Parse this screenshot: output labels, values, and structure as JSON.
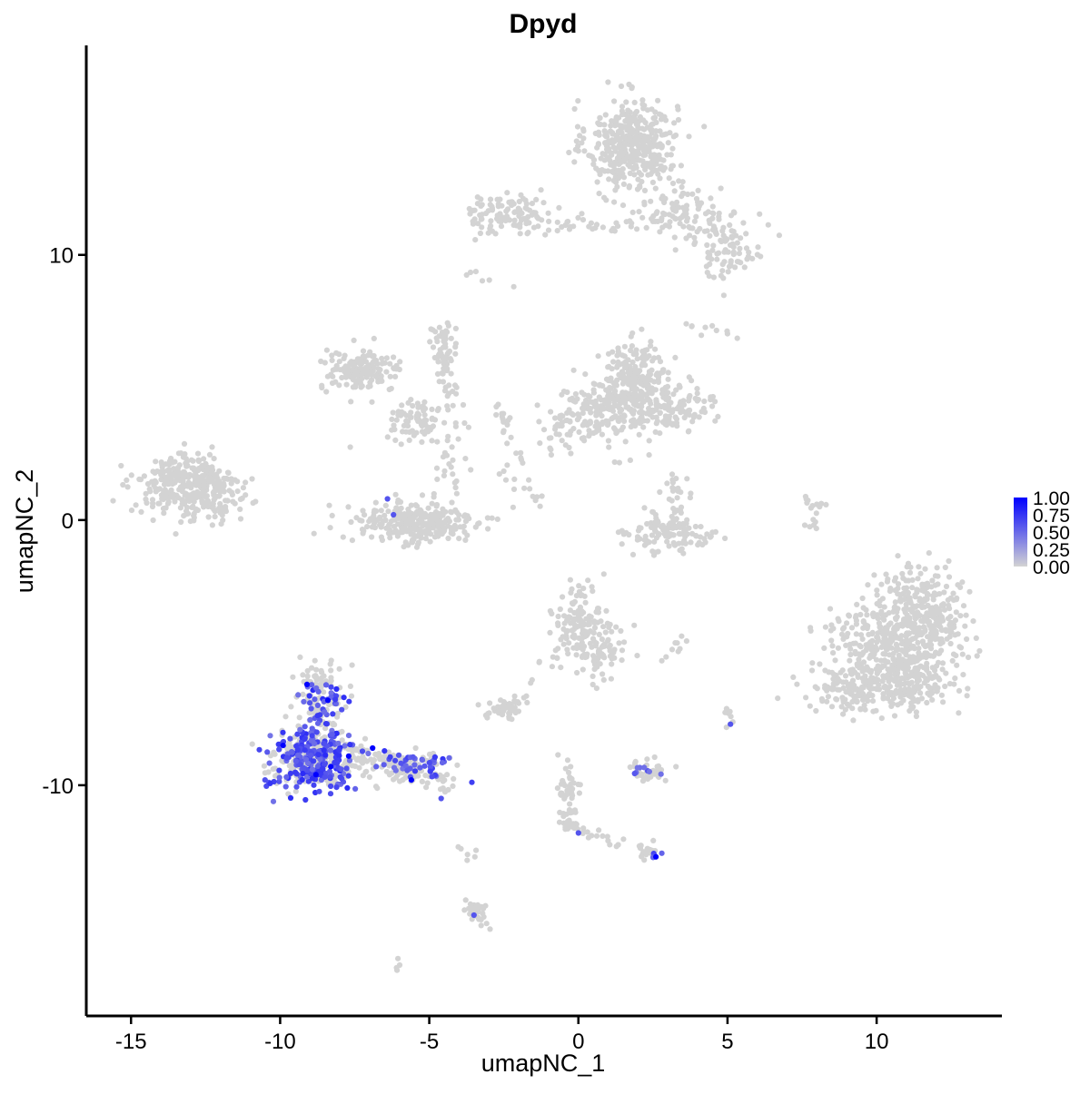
{
  "chart_data": {
    "type": "scatter",
    "title": "Dpyd",
    "xlabel": "umapNC_1",
    "ylabel": "umapNC_2",
    "xlim": [
      -16.5,
      14.2
    ],
    "ylim": [
      -18.7,
      17.9
    ],
    "x_ticks": [
      -15,
      -10,
      -5,
      0,
      5,
      10
    ],
    "y_ticks": [
      -10,
      0,
      10
    ],
    "x_tick_labels": [
      "-15",
      "-10",
      "-5",
      "0",
      "5",
      "10"
    ],
    "y_tick_labels": [
      "-10",
      "0",
      "10"
    ],
    "grid": false,
    "legend_position": "right",
    "colors": {
      "low": "#d3d3d3",
      "high": "#0000ff",
      "axis": "#000000"
    },
    "colorbar": {
      "min": 0,
      "max": 1,
      "ticks": [
        1.0,
        0.75,
        0.5,
        0.25,
        0.0
      ],
      "labels": [
        "1.00",
        "0.75",
        "0.50",
        "0.25",
        "0.00"
      ]
    },
    "clusters": [
      {
        "center": [
          1.8,
          14.2
        ],
        "spread": [
          1.0,
          1.1
        ],
        "n": 420
      },
      {
        "center": [
          3.5,
          11.6
        ],
        "spread": [
          1.3,
          0.7
        ],
        "n": 110
      },
      {
        "center": [
          5.0,
          10.2
        ],
        "spread": [
          0.8,
          0.7
        ],
        "n": 80
      },
      {
        "center": [
          -2.3,
          11.5
        ],
        "spread": [
          1.0,
          0.5
        ],
        "n": 110
      },
      {
        "center": [
          0.8,
          11.2
        ],
        "spread": [
          0.8,
          0.3
        ],
        "n": 25
      },
      {
        "center": [
          1.9,
          5.5
        ],
        "spread": [
          0.8,
          0.8
        ],
        "n": 170
      },
      {
        "center": [
          0.9,
          4.0
        ],
        "spread": [
          1.1,
          0.9
        ],
        "n": 170
      },
      {
        "center": [
          2.8,
          4.3
        ],
        "spread": [
          1.2,
          0.6
        ],
        "n": 150
      },
      {
        "center": [
          -0.5,
          3.5
        ],
        "spread": [
          0.6,
          0.7
        ],
        "n": 30
      },
      {
        "center": [
          -7.3,
          5.6
        ],
        "spread": [
          0.9,
          0.5
        ],
        "n": 150
      },
      {
        "center": [
          -5.3,
          3.8
        ],
        "spread": [
          0.8,
          0.5
        ],
        "n": 80
      },
      {
        "center": [
          -4.3,
          1.6
        ],
        "spread": [
          0.3,
          1.0
        ],
        "n": 30
      },
      {
        "center": [
          -4.5,
          6.3
        ],
        "spread": [
          0.3,
          1.0
        ],
        "n": 40
      },
      {
        "center": [
          -5.5,
          -0.1
        ],
        "spread": [
          1.4,
          0.55
        ],
        "n": 270
      },
      {
        "center": [
          -13.1,
          1.3
        ],
        "spread": [
          1.1,
          0.75
        ],
        "n": 340
      },
      {
        "center": [
          -12.0,
          0.5
        ],
        "spread": [
          0.7,
          0.6
        ],
        "n": 40
      },
      {
        "center": [
          3.2,
          -0.5
        ],
        "spread": [
          1.0,
          0.5
        ],
        "n": 120
      },
      {
        "center": [
          3.3,
          1.0
        ],
        "spread": [
          0.3,
          0.6
        ],
        "n": 25
      },
      {
        "center": [
          0.0,
          -3.9
        ],
        "spread": [
          0.6,
          0.9
        ],
        "n": 130
      },
      {
        "center": [
          0.8,
          -4.9
        ],
        "spread": [
          0.6,
          0.8
        ],
        "n": 70
      },
      {
        "center": [
          -2.4,
          -7.1
        ],
        "spread": [
          0.4,
          0.3
        ],
        "n": 50
      },
      {
        "center": [
          10.7,
          -4.5
        ],
        "spread": [
          1.4,
          1.2
        ],
        "n": 450
      },
      {
        "center": [
          10.2,
          -6.3
        ],
        "spread": [
          1.6,
          0.6
        ],
        "n": 300
      },
      {
        "center": [
          11.6,
          -3.0
        ],
        "spread": [
          0.9,
          0.9
        ],
        "n": 150
      },
      {
        "center": [
          -8.8,
          -8.9
        ],
        "spread": [
          1.0,
          0.7
        ],
        "n": 220
      },
      {
        "center": [
          -8.6,
          -6.6
        ],
        "spread": [
          0.6,
          0.9
        ],
        "n": 90
      },
      {
        "center": [
          -5.6,
          -9.3
        ],
        "spread": [
          1.0,
          0.4
        ],
        "n": 80
      },
      {
        "center": [
          2.4,
          -9.5
        ],
        "spread": [
          0.5,
          0.25
        ],
        "n": 40
      },
      {
        "center": [
          -0.4,
          -10.3
        ],
        "spread": [
          0.3,
          0.7
        ],
        "n": 30
      },
      {
        "center": [
          -0.2,
          -11.5
        ],
        "spread": [
          0.3,
          0.2
        ],
        "n": 12
      },
      {
        "center": [
          2.3,
          -12.5
        ],
        "spread": [
          0.25,
          0.2
        ],
        "n": 20
      },
      {
        "center": [
          -3.4,
          -14.8
        ],
        "spread": [
          0.25,
          0.4
        ],
        "n": 30
      }
    ],
    "streams": [
      {
        "from": [
          -5.0,
          7.6
        ],
        "to": [
          -4.2,
          4.3
        ],
        "n": 30
      },
      {
        "from": [
          -2.7,
          4.5
        ],
        "to": [
          -2.0,
          2.2
        ],
        "n": 20
      },
      {
        "from": [
          -2.5,
          1.8
        ],
        "to": [
          -1.2,
          0.6
        ],
        "n": 14
      },
      {
        "from": [
          7.6,
          0.8
        ],
        "to": [
          8.1,
          0.2
        ],
        "n": 6
      },
      {
        "from": [
          8.3,
          0.9
        ],
        "to": [
          7.8,
          -0.3
        ],
        "n": 12
      },
      {
        "from": [
          -3.7,
          9.4
        ],
        "to": [
          -2.4,
          8.8
        ],
        "n": 6
      },
      {
        "from": [
          -7.6,
          -8.6
        ],
        "to": [
          -4.2,
          -10.3
        ],
        "n": 45
      },
      {
        "from": [
          -0.6,
          -9.3
        ],
        "to": [
          -0.2,
          -11.8
        ],
        "n": 25
      },
      {
        "from": [
          0.2,
          -11.8
        ],
        "to": [
          1.6,
          -12.2
        ],
        "n": 14
      },
      {
        "from": [
          -1.7,
          -6.2
        ],
        "to": [
          -0.9,
          -5.0
        ],
        "n": 8
      },
      {
        "from": [
          2.9,
          -5.2
        ],
        "to": [
          3.5,
          -4.5
        ],
        "n": 9
      },
      {
        "from": [
          4.9,
          -7.1
        ],
        "to": [
          5.1,
          -7.7
        ],
        "n": 8
      },
      {
        "from": [
          -4.0,
          -12.0
        ],
        "to": [
          -3.6,
          -12.8
        ],
        "n": 6
      },
      {
        "from": [
          -6.1,
          -17.0
        ],
        "to": [
          -5.9,
          -16.8
        ],
        "n": 4
      },
      {
        "from": [
          3.4,
          7.3
        ],
        "to": [
          6.8,
          6.8
        ],
        "n": 10
      }
    ],
    "expressing_regions": [
      {
        "center": [
          -8.9,
          -9.0
        ],
        "spread": [
          0.9,
          0.8
        ],
        "n": 230,
        "value_range": [
          0.45,
          0.8
        ]
      },
      {
        "center": [
          -8.6,
          -7.0
        ],
        "spread": [
          0.5,
          0.7
        ],
        "n": 40,
        "value_range": [
          0.45,
          0.8
        ]
      },
      {
        "center": [
          -5.7,
          -9.2
        ],
        "spread": [
          0.9,
          0.35
        ],
        "n": 45,
        "value_range": [
          0.45,
          0.75
        ]
      },
      {
        "center": [
          2.4,
          -9.4
        ],
        "spread": [
          0.45,
          0.2
        ],
        "n": 8,
        "value_range": [
          0.45,
          0.7
        ]
      },
      {
        "center": [
          2.5,
          -12.5
        ],
        "spread": [
          0.15,
          0.15
        ],
        "n": 5,
        "value_range": [
          0.5,
          0.7
        ]
      }
    ],
    "expressing_points": [
      {
        "x": -9.9,
        "y": -8.5,
        "value": 1.0
      },
      {
        "x": -9.1,
        "y": -6.2,
        "value": 1.0
      },
      {
        "x": -8.4,
        "y": -6.8,
        "value": 1.0
      },
      {
        "x": -8.8,
        "y": -9.6,
        "value": 1.0
      },
      {
        "x": -7.7,
        "y": -8.9,
        "value": 1.0
      },
      {
        "x": -6.9,
        "y": -8.6,
        "value": 1.0
      },
      {
        "x": -8.3,
        "y": -9.3,
        "value": 1.0
      },
      {
        "x": -5.6,
        "y": -9.8,
        "value": 1.0
      },
      {
        "x": 2.6,
        "y": -12.7,
        "value": 1.0
      },
      {
        "x": -6.4,
        "y": 0.8,
        "value": 0.6
      },
      {
        "x": -6.2,
        "y": 0.2,
        "value": 0.6
      },
      {
        "x": 5.1,
        "y": -7.7,
        "value": 0.6
      },
      {
        "x": 0.0,
        "y": -11.8,
        "value": 0.6
      },
      {
        "x": -3.5,
        "y": -14.9,
        "value": 0.6
      },
      {
        "x": -4.6,
        "y": -10.5,
        "value": 0.6
      }
    ]
  }
}
